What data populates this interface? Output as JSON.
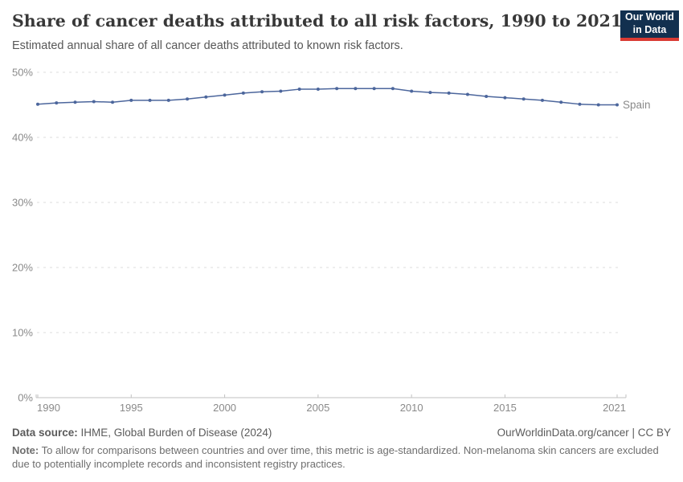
{
  "header": {
    "title": "Share of cancer deaths attributed to all risk factors, 1990 to 2021",
    "subtitle": "Estimated annual share of all cancer deaths attributed to known risk factors.",
    "logo": {
      "line1": "Our World",
      "line2": "in Data"
    }
  },
  "chart_data": {
    "type": "line",
    "title": "Share of cancer deaths attributed to all risk factors, 1990 to 2021",
    "xlabel": "",
    "ylabel": "",
    "ylim": [
      0,
      50
    ],
    "grid": "horizontal-dashed",
    "legend_position": "end-of-line",
    "x": [
      1990,
      1991,
      1992,
      1993,
      1994,
      1995,
      1996,
      1997,
      1998,
      1999,
      2000,
      2001,
      2002,
      2003,
      2004,
      2005,
      2006,
      2007,
      2008,
      2009,
      2010,
      2011,
      2012,
      2013,
      2014,
      2015,
      2016,
      2017,
      2018,
      2019,
      2020,
      2021
    ],
    "series": [
      {
        "name": "Spain",
        "color": "#4C669C",
        "values": [
          45.1,
          45.3,
          45.4,
          45.5,
          45.4,
          45.7,
          45.7,
          45.7,
          45.9,
          46.2,
          46.5,
          46.8,
          47.0,
          47.1,
          47.4,
          47.4,
          47.5,
          47.5,
          47.5,
          47.5,
          47.1,
          46.9,
          46.8,
          46.6,
          46.3,
          46.1,
          45.9,
          45.7,
          45.4,
          45.1,
          45.0,
          45.0
        ]
      }
    ],
    "yticks": {
      "values": [
        0,
        10,
        20,
        30,
        40,
        50
      ],
      "labels": [
        "0%",
        "10%",
        "20%",
        "30%",
        "40%",
        "50%"
      ]
    },
    "xticks": {
      "values": [
        1990,
        1995,
        2000,
        2005,
        2010,
        2015,
        2021
      ],
      "labels": [
        "1990",
        "1995",
        "2000",
        "2005",
        "2010",
        "2015",
        "2021"
      ]
    }
  },
  "footer": {
    "source_label": "Data source:",
    "source_text": "IHME, Global Burden of Disease (2024)",
    "credit": "OurWorldinData.org/cancer | CC BY",
    "note_label": "Note:",
    "note_text": "To allow for comparisons between countries and over time, this metric is age-standardized. Non-melanoma skin cancers are excluded due to potentially incomplete records and inconsistent registry practices."
  },
  "colors": {
    "series": "#4C669C",
    "grid": "#dedede",
    "axis": "#c2c2c2",
    "tick_label": "#8a8a8a",
    "logo_bg": "#12304f",
    "logo_accent": "#d93b33"
  }
}
